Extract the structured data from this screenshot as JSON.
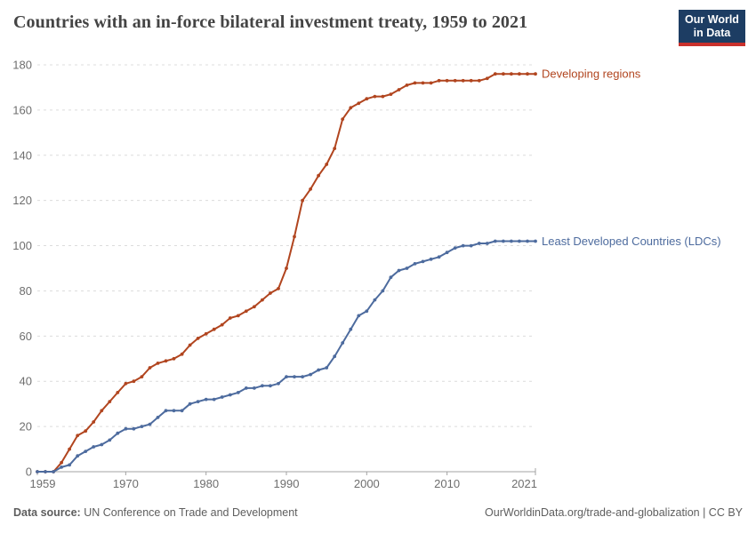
{
  "header": {
    "title": "Countries with an in-force bilateral investment treaty, 1959 to 2021",
    "logo_line1": "Our World",
    "logo_line2": "in Data"
  },
  "chart_data": {
    "type": "line",
    "title": "Countries with an in-force bilateral investment treaty, 1959 to 2021",
    "xlabel": "",
    "ylabel": "",
    "xlim": [
      1959,
      2021
    ],
    "ylim": [
      0,
      180
    ],
    "grid": "horizontal-dashed",
    "legend": "line-end-labels",
    "xticks": [
      1959,
      1970,
      1980,
      1990,
      2000,
      2010,
      2021
    ],
    "yticks": [
      0,
      20,
      40,
      60,
      80,
      100,
      120,
      140,
      160,
      180
    ],
    "years": [
      1959,
      1960,
      1961,
      1962,
      1963,
      1964,
      1965,
      1966,
      1967,
      1968,
      1969,
      1970,
      1971,
      1972,
      1973,
      1974,
      1975,
      1976,
      1977,
      1978,
      1979,
      1980,
      1981,
      1982,
      1983,
      1984,
      1985,
      1986,
      1987,
      1988,
      1989,
      1990,
      1991,
      1992,
      1993,
      1994,
      1995,
      1996,
      1997,
      1998,
      1999,
      2000,
      2001,
      2002,
      2003,
      2004,
      2005,
      2006,
      2007,
      2008,
      2009,
      2010,
      2011,
      2012,
      2013,
      2014,
      2015,
      2016,
      2017,
      2018,
      2019,
      2020,
      2021
    ],
    "series": [
      {
        "name": "Developing regions",
        "color": "#b1451f",
        "values": [
          0,
          0,
          0,
          4,
          10,
          16,
          18,
          22,
          27,
          31,
          35,
          39,
          40,
          42,
          46,
          48,
          49,
          50,
          52,
          56,
          59,
          61,
          63,
          65,
          68,
          69,
          71,
          73,
          76,
          79,
          81,
          90,
          104,
          120,
          125,
          131,
          136,
          143,
          156,
          161,
          163,
          165,
          166,
          166,
          167,
          169,
          171,
          172,
          172,
          172,
          173,
          173,
          173,
          173,
          173,
          173,
          174,
          176,
          176,
          176,
          176,
          176,
          176
        ]
      },
      {
        "name": "Least Developed Countries (LDCs)",
        "color": "#4d6b9e",
        "values": [
          0,
          0,
          0,
          2,
          3,
          7,
          9,
          11,
          12,
          14,
          17,
          19,
          19,
          20,
          21,
          24,
          27,
          27,
          27,
          30,
          31,
          32,
          32,
          33,
          34,
          35,
          37,
          37,
          38,
          38,
          39,
          42,
          42,
          42,
          43,
          45,
          46,
          51,
          57,
          63,
          69,
          71,
          76,
          80,
          86,
          89,
          90,
          92,
          93,
          94,
          95,
          97,
          99,
          100,
          100,
          101,
          101,
          102,
          102,
          102,
          102,
          102,
          102
        ]
      }
    ],
    "style": {
      "gridline_color": "#dcdcdc",
      "axis_color": "#a3a3a3",
      "tick_label_color": "#6e6e6e"
    }
  },
  "footer": {
    "data_source_label": "Data source:",
    "data_source_value": "UN Conference on Trade and Development",
    "attribution": "OurWorldinData.org/trade-and-globalization | CC BY"
  }
}
